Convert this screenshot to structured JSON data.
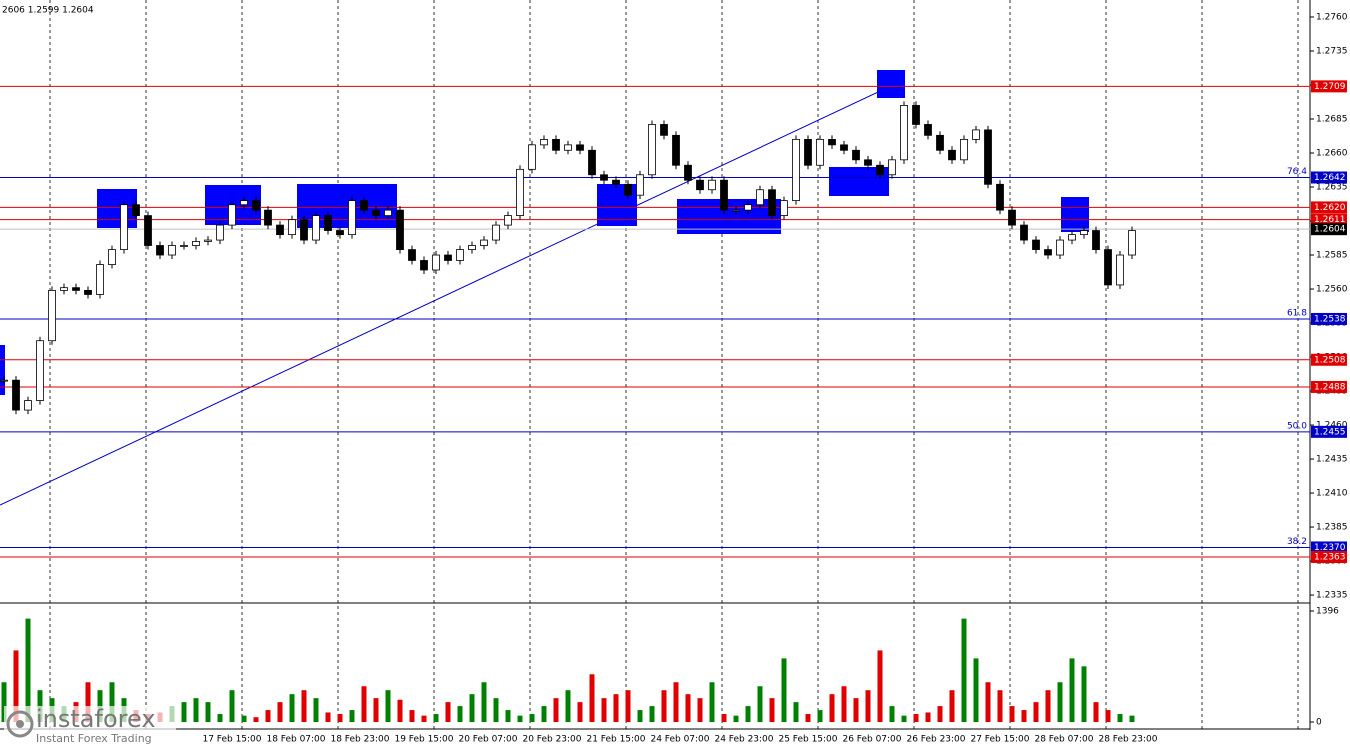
{
  "chart_data": {
    "type": "candlestick",
    "header": "2606 1.2599 1.2604",
    "closes": [
      1.2493,
      1.2471,
      1.2478,
      1.2522,
      1.2559,
      1.2561,
      1.2559,
      1.2556,
      1.2578,
      1.2589,
      1.2622,
      1.2614,
      1.2592,
      1.2585,
      1.2592,
      1.2592,
      1.2595,
      1.2596,
      1.2607,
      1.2622,
      1.2625,
      1.2618,
      1.2607,
      1.26,
      1.2611,
      1.2596,
      1.2614,
      1.2603,
      1.26,
      1.2625,
      1.2618,
      1.2614,
      1.2618,
      1.2589,
      1.2581,
      1.2574,
      1.2585,
      1.2581,
      1.2589,
      1.2592,
      1.2596,
      1.2607,
      1.2614,
      1.2648,
      1.2666,
      1.267,
      1.2662,
      1.2666,
      1.2662,
      1.2644,
      1.264,
      1.2637,
      1.2629,
      1.2644,
      1.2681,
      1.2673,
      1.2651,
      1.264,
      1.2633,
      1.264,
      1.2618,
      1.2618,
      1.2622,
      1.2633,
      1.2614,
      1.2625,
      1.267,
      1.2651,
      1.267,
      1.2666,
      1.2662,
      1.2655,
      1.2651,
      1.2644,
      1.2655,
      1.2695,
      1.2681,
      1.2673,
      1.2662,
      1.2655,
      1.267,
      1.2677,
      1.2637,
      1.2618,
      1.2607,
      1.2596,
      1.2589,
      1.2585,
      1.2596,
      1.26,
      1.2603,
      1.2589,
      1.2563,
      1.2585,
      1.2603
    ],
    "volumes": [
      500,
      900,
      1300,
      400,
      300,
      200,
      250,
      500,
      400,
      500,
      300,
      150,
      100,
      120,
      200,
      250,
      300,
      250,
      100,
      400,
      80,
      60,
      150,
      250,
      350,
      400,
      300,
      120,
      100,
      150,
      450,
      300,
      400,
      280,
      150,
      80,
      100,
      250,
      200,
      350,
      500,
      300,
      150,
      80,
      100,
      200,
      300,
      400,
      250,
      600,
      300,
      350,
      400,
      150,
      200,
      400,
      500,
      350,
      300,
      500,
      100,
      80,
      200,
      450,
      300,
      800,
      250,
      100,
      150,
      350,
      450,
      300,
      400,
      900,
      200,
      80,
      100,
      120,
      200,
      400,
      1300,
      800,
      500,
      400,
      200,
      150,
      250,
      400,
      500,
      800,
      700,
      250,
      150,
      100,
      80
    ],
    "up_color": "#008000",
    "down_color": "#e00000",
    "ylim": [
      1.23299,
      1.27725
    ],
    "yticks": [
      {
        "value": 1.276,
        "label": "1.2760"
      },
      1.2735,
      {
        "value": 1.271,
        "label": "1.2710"
      },
      1.2685,
      {
        "value": 1.266,
        "label": "1.2660"
      },
      1.2635,
      {
        "value": 1.261,
        "label": "1.2610"
      },
      1.2585,
      {
        "value": 1.256,
        "label": "1.2560"
      },
      1.2535,
      {
        "value": 1.251,
        "label": "1.2510"
      },
      1.2485,
      {
        "value": 1.246,
        "label": "1.2460"
      },
      1.2435,
      {
        "value": 1.241,
        "label": "1.2410"
      },
      1.2385,
      {
        "value": 1.236,
        "label": "1.2360"
      },
      1.2335
    ],
    "volume_ylim": [
      0,
      1396
    ],
    "volume_yticks": [
      1396,
      0
    ],
    "levels": [
      {
        "value": 1.2709,
        "color": "#e00000"
      },
      {
        "value": 1.2642,
        "color": "#0000c8",
        "fib": "76.4"
      },
      {
        "value": 1.262,
        "label": "1.2620",
        "color": "#e00000"
      },
      {
        "value": 1.2611,
        "color": "#e00000"
      },
      {
        "value": 1.2538,
        "color": "#0000c8",
        "fib": "61.8"
      },
      {
        "value": 1.2508,
        "color": "#e00000"
      },
      {
        "value": 1.2488,
        "color": "#e00000"
      },
      {
        "value": 1.2455,
        "color": "#0000c8",
        "fib": "50.0"
      },
      {
        "value": 1.237,
        "label": "1.2370",
        "color": "#0000c8",
        "fib": "38.2"
      },
      {
        "value": 1.2363,
        "color": "#e00000"
      }
    ],
    "current_price": 1.2604,
    "x_labels": [
      "17 Feb 15:00",
      "18 Feb 07:00",
      "18 Feb 23:00",
      "19 Feb 15:00",
      "20 Feb 07:00",
      "20 Feb 23:00",
      "21 Feb 15:00",
      "24 Feb 07:00",
      "24 Feb 23:00",
      "25 Feb 15:00",
      "26 Feb 07:00",
      "26 Feb 23:00",
      "27 Feb 15:00",
      "28 Feb 07:00",
      "28 Feb 23:00"
    ]
  },
  "logo": {
    "name": "instaforex",
    "tagline": "Instant Forex Trading"
  }
}
